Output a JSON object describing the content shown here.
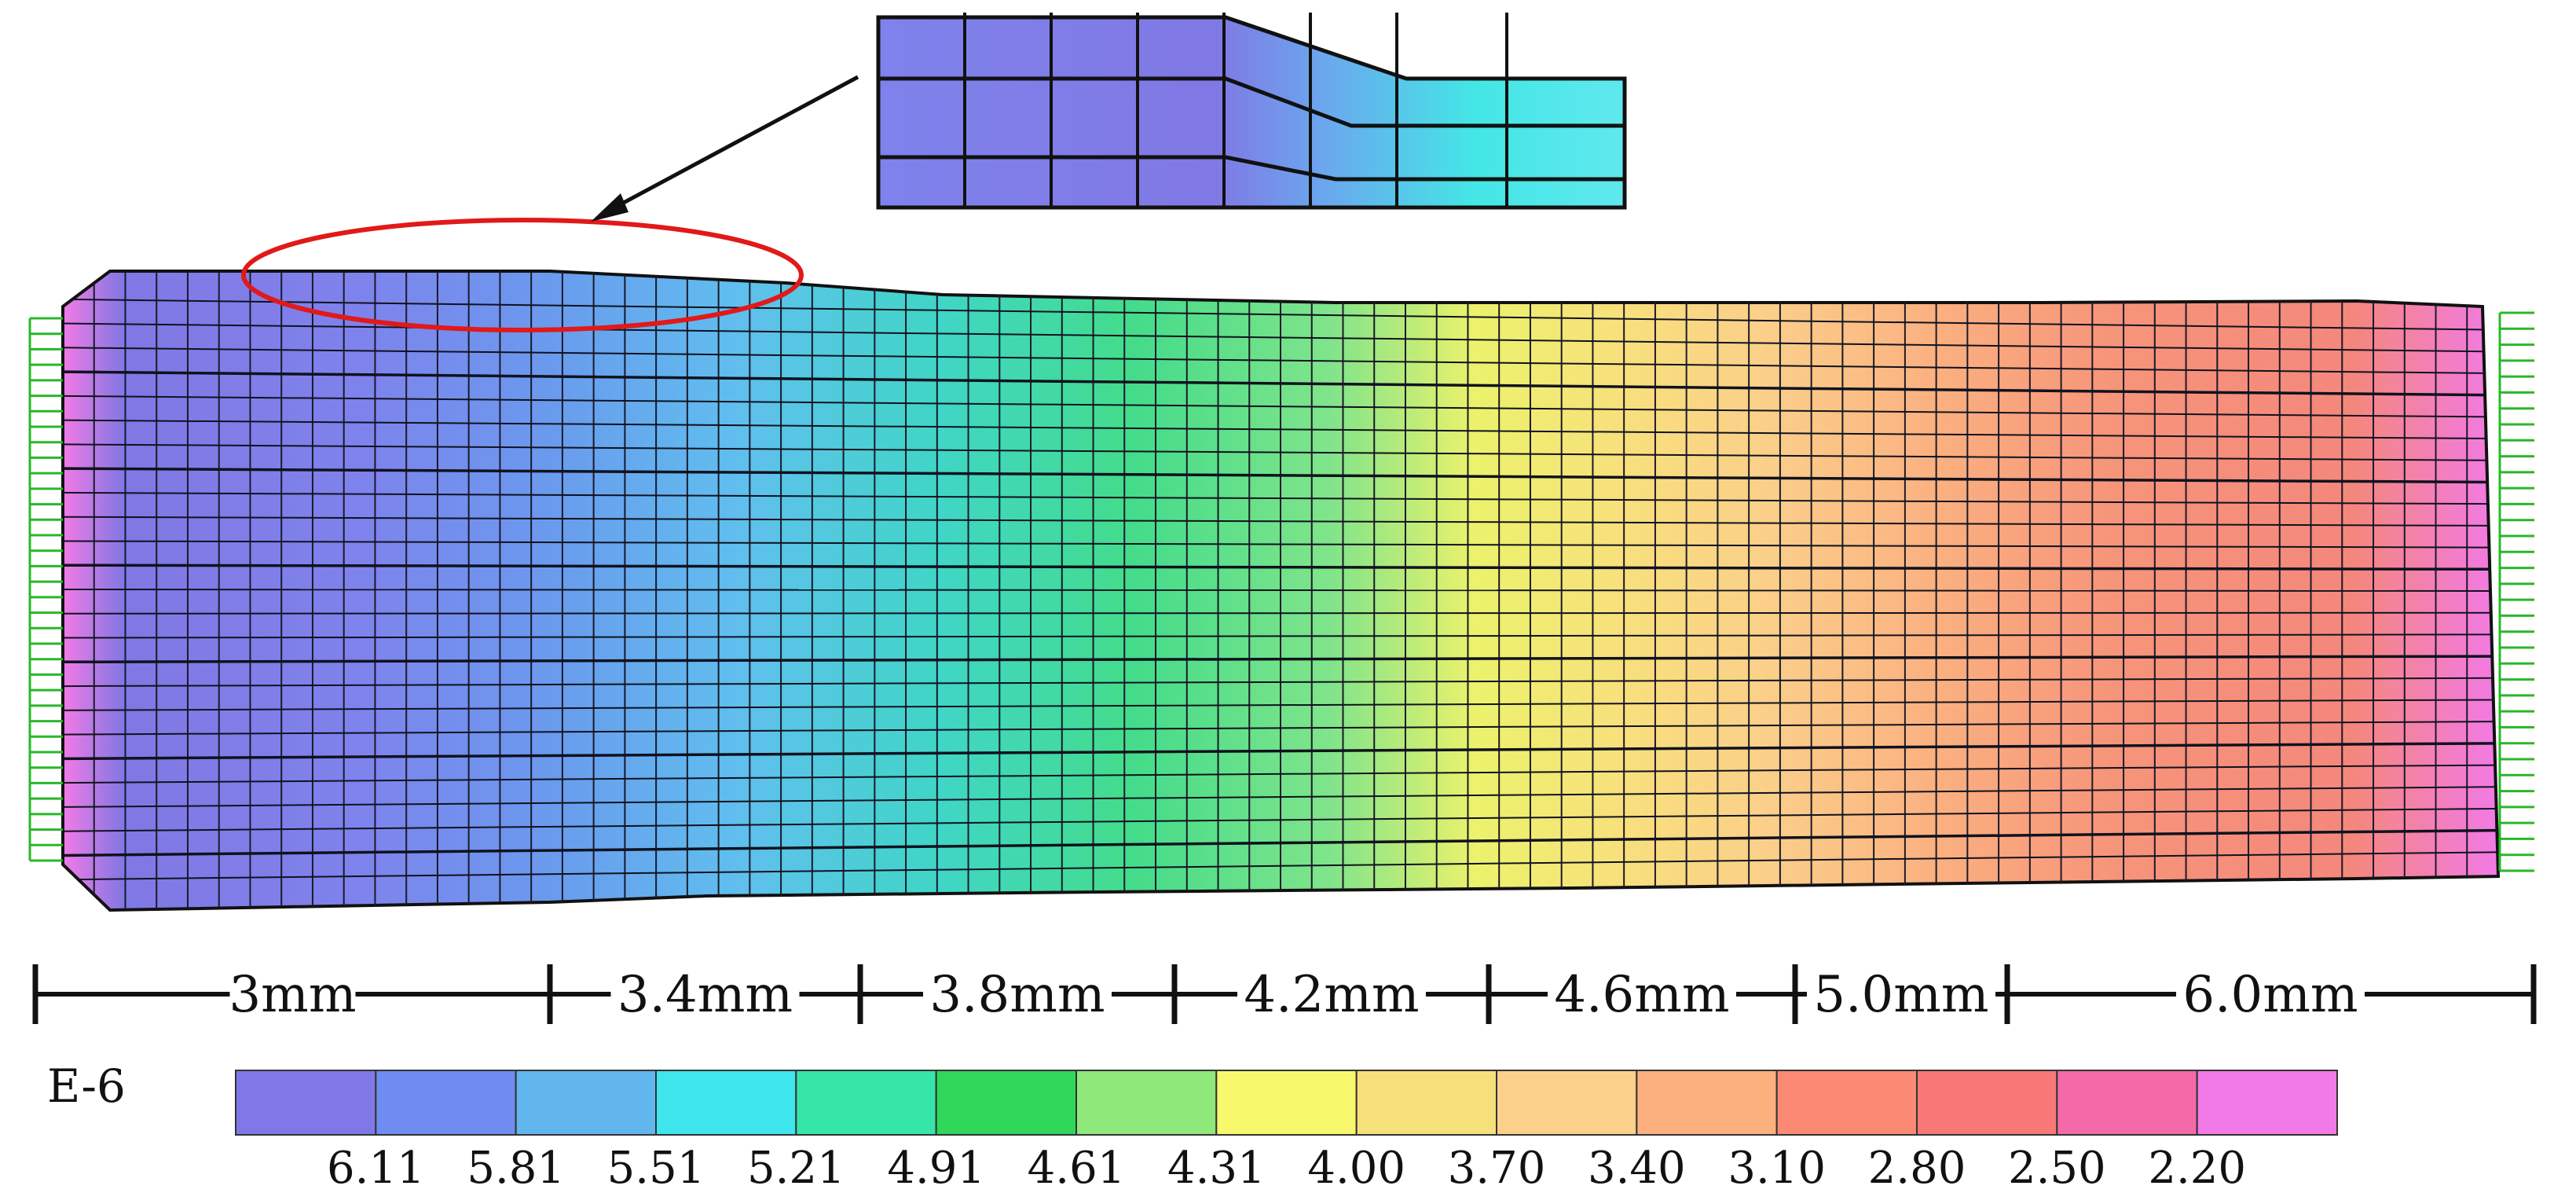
{
  "figure": {
    "description_units": "E-6",
    "segments": [
      {
        "label": "3mm"
      },
      {
        "label": "3.4mm"
      },
      {
        "label": "3.8mm"
      },
      {
        "label": "4.2mm"
      },
      {
        "label": "4.6mm"
      },
      {
        "label": "5.0mm"
      },
      {
        "label": "6.0mm"
      }
    ],
    "colorbar": {
      "unit": "E-6",
      "colors": [
        "#7f78e6",
        "#6f8cf0",
        "#62b6ee",
        "#3fe6ee",
        "#36e6a8",
        "#2fd85a",
        "#8fe87a",
        "#f8f86c",
        "#f6e07c",
        "#fbd08a",
        "#fbb07e",
        "#fa8a74",
        "#f87878",
        "#f46aa8",
        "#f27ae6"
      ],
      "tick_labels": [
        "6.11",
        "5.81",
        "5.51",
        "5.21",
        "4.91",
        "4.61",
        "4.31",
        "4.00",
        "3.70",
        "3.40",
        "3.10",
        "2.80",
        "2.50",
        "2.20"
      ]
    },
    "contour_colors": [
      "#f27ae6",
      "#8078e4",
      "#7f82ec",
      "#6a9aee",
      "#5fc0ee",
      "#3fd6c6",
      "#44dc8a",
      "#80e48a",
      "#ecf26c",
      "#f8e07c",
      "#fbcf8a",
      "#fbb080",
      "#f6957a",
      "#f4877c",
      "#f27ae6"
    ]
  }
}
